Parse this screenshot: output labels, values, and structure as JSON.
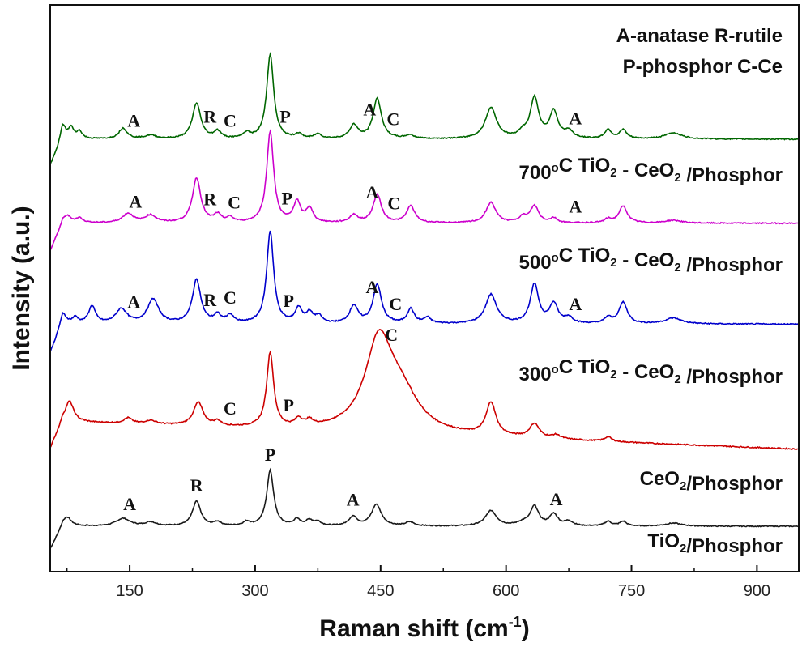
{
  "chart_data": {
    "type": "line",
    "xlabel": "Raman shift (cm",
    "xlabel_sup": "-1",
    "xlabel_tail": ")",
    "ylabel": "Intensity (a.u.)",
    "xlim": [
      55,
      950
    ],
    "xticks": [
      150,
      300,
      450,
      600,
      750,
      900
    ],
    "legend_lines": [
      "A-anatase R-rutile",
      "P-phosphor C-Ce"
    ],
    "series": [
      {
        "label_parts": [
          {
            "t": "TiO"
          },
          {
            "t": "2",
            "sub": true
          },
          {
            "t": "/Phosphor"
          }
        ],
        "color": "#1a1a1a",
        "baseline": 0.02,
        "peaks": [
          [
            75,
            0.12,
            6
          ],
          [
            142,
            0.1,
            10
          ],
          [
            175,
            0.05,
            8
          ],
          [
            230,
            0.32,
            6
          ],
          [
            255,
            0.05,
            5
          ],
          [
            290,
            0.05,
            5
          ],
          [
            318,
            0.72,
            5
          ],
          [
            350,
            0.08,
            5
          ],
          [
            365,
            0.07,
            5
          ],
          [
            375,
            0.05,
            5
          ],
          [
            417,
            0.12,
            6
          ],
          [
            445,
            0.28,
            7
          ],
          [
            485,
            0.05,
            6
          ],
          [
            582,
            0.2,
            8
          ],
          [
            620,
            0.04,
            8
          ],
          [
            634,
            0.25,
            6
          ],
          [
            657,
            0.15,
            6
          ],
          [
            675,
            0.06,
            6
          ],
          [
            722,
            0.06,
            5
          ],
          [
            740,
            0.06,
            5
          ],
          [
            800,
            0.04,
            12
          ]
        ],
        "annotations": [
          {
            "x": 150,
            "text": "A"
          },
          {
            "x": 230,
            "text": "R"
          },
          {
            "x": 318,
            "text": "P"
          },
          {
            "x": 417,
            "text": "A"
          },
          {
            "x": 660,
            "text": "A"
          }
        ]
      },
      {
        "label_parts": [
          {
            "t": "CeO"
          },
          {
            "t": "2",
            "sub": true
          },
          {
            "t": "/Phosphor"
          }
        ],
        "color": "#cc0000",
        "baseline": 0.3,
        "baseline_end": 0.0,
        "peaks": [
          [
            78,
            0.22,
            6
          ],
          [
            148,
            0.06,
            6
          ],
          [
            175,
            0.04,
            8
          ],
          [
            232,
            0.25,
            7
          ],
          [
            255,
            0.05,
            5
          ],
          [
            318,
            0.8,
            5
          ],
          [
            352,
            0.08,
            5
          ],
          [
            365,
            0.06,
            5
          ],
          [
            448,
            0.95,
            20
          ],
          [
            475,
            0.35,
            25
          ],
          [
            582,
            0.35,
            7
          ],
          [
            634,
            0.15,
            7
          ],
          [
            660,
            0.04,
            6
          ],
          [
            722,
            0.05,
            5
          ]
        ],
        "annotations": [
          {
            "x": 270,
            "text": "C"
          },
          {
            "x": 340,
            "text": "P"
          },
          {
            "x": 463,
            "text": "C"
          }
        ]
      },
      {
        "label_parts": [
          {
            "t": "300"
          },
          {
            "t": "o",
            "sup": true
          },
          {
            "t": "C TiO"
          },
          {
            "t": "2",
            "sub": true
          },
          {
            "t": " - CeO"
          },
          {
            "t": "2",
            "sub": true
          },
          {
            "t": " /Phosphor"
          }
        ],
        "color": "#0000cc",
        "baseline": 0.08,
        "peaks": [
          [
            70,
            0.1,
            5
          ],
          [
            85,
            0.06,
            4
          ],
          [
            105,
            0.18,
            5
          ],
          [
            140,
            0.15,
            8
          ],
          [
            178,
            0.25,
            8
          ],
          [
            230,
            0.45,
            6
          ],
          [
            255,
            0.08,
            5
          ],
          [
            270,
            0.08,
            5
          ],
          [
            318,
            0.95,
            5
          ],
          [
            352,
            0.15,
            5
          ],
          [
            365,
            0.1,
            5
          ],
          [
            376,
            0.07,
            5
          ],
          [
            418,
            0.18,
            6
          ],
          [
            446,
            0.4,
            6
          ],
          [
            486,
            0.15,
            5
          ],
          [
            506,
            0.06,
            5
          ],
          [
            582,
            0.3,
            8
          ],
          [
            634,
            0.4,
            6
          ],
          [
            657,
            0.2,
            6
          ],
          [
            675,
            0.06,
            6
          ],
          [
            722,
            0.06,
            5
          ],
          [
            740,
            0.22,
            6
          ],
          [
            800,
            0.06,
            12
          ]
        ],
        "annotations": [
          {
            "x": 155,
            "text": "A"
          },
          {
            "x": 246,
            "text": "R"
          },
          {
            "x": 270,
            "text": "C"
          },
          {
            "x": 340,
            "text": "P"
          },
          {
            "x": 440,
            "text": "A"
          },
          {
            "x": 468,
            "text": "C"
          },
          {
            "x": 683,
            "text": "A"
          }
        ]
      },
      {
        "label_parts": [
          {
            "t": "500"
          },
          {
            "t": "o",
            "sup": true
          },
          {
            "t": "C TiO"
          },
          {
            "t": "2",
            "sub": true
          },
          {
            "t": " - CeO"
          },
          {
            "t": "2",
            "sub": true
          },
          {
            "t": " /Phosphor"
          }
        ],
        "color": "#cc00cc",
        "baseline": 0.08,
        "peaks": [
          [
            75,
            0.08,
            6
          ],
          [
            90,
            0.05,
            5
          ],
          [
            148,
            0.1,
            8
          ],
          [
            175,
            0.08,
            8
          ],
          [
            230,
            0.48,
            6
          ],
          [
            255,
            0.08,
            5
          ],
          [
            270,
            0.05,
            5
          ],
          [
            318,
            0.98,
            5
          ],
          [
            350,
            0.22,
            5
          ],
          [
            365,
            0.15,
            5
          ],
          [
            418,
            0.08,
            6
          ],
          [
            446,
            0.3,
            6
          ],
          [
            486,
            0.18,
            6
          ],
          [
            582,
            0.22,
            7
          ],
          [
            620,
            0.06,
            6
          ],
          [
            634,
            0.18,
            6
          ],
          [
            657,
            0.05,
            5
          ],
          [
            722,
            0.04,
            5
          ],
          [
            740,
            0.18,
            6
          ],
          [
            800,
            0.03,
            12
          ]
        ],
        "annotations": [
          {
            "x": 157,
            "text": "A"
          },
          {
            "x": 246,
            "text": "R"
          },
          {
            "x": 275,
            "text": "C"
          },
          {
            "x": 338,
            "text": "P"
          },
          {
            "x": 440,
            "text": "A"
          },
          {
            "x": 466,
            "text": "C"
          },
          {
            "x": 683,
            "text": "A"
          }
        ]
      },
      {
        "label_parts": [
          {
            "t": "700"
          },
          {
            "t": "o",
            "sup": true
          },
          {
            "t": "C TiO"
          },
          {
            "t": "2",
            "sub": true
          },
          {
            "t": " - CeO"
          },
          {
            "t": "2",
            "sub": true
          },
          {
            "t": " /Phosphor"
          }
        ],
        "color": "#006600",
        "baseline": 0.1,
        "peaks": [
          [
            70,
            0.15,
            4
          ],
          [
            80,
            0.12,
            4
          ],
          [
            90,
            0.08,
            4
          ],
          [
            142,
            0.12,
            6
          ],
          [
            175,
            0.04,
            8
          ],
          [
            230,
            0.4,
            6
          ],
          [
            255,
            0.08,
            5
          ],
          [
            290,
            0.06,
            5
          ],
          [
            318,
            0.95,
            5
          ],
          [
            352,
            0.05,
            5
          ],
          [
            375,
            0.05,
            5
          ],
          [
            418,
            0.15,
            6
          ],
          [
            446,
            0.45,
            6
          ],
          [
            485,
            0.04,
            6
          ],
          [
            582,
            0.35,
            8
          ],
          [
            620,
            0.06,
            6
          ],
          [
            634,
            0.45,
            6
          ],
          [
            657,
            0.3,
            6
          ],
          [
            675,
            0.08,
            6
          ],
          [
            722,
            0.1,
            5
          ],
          [
            740,
            0.1,
            5
          ],
          [
            800,
            0.07,
            12
          ]
        ],
        "annotations": [
          {
            "x": 155,
            "text": "A"
          },
          {
            "x": 246,
            "text": "R"
          },
          {
            "x": 270,
            "text": "C"
          },
          {
            "x": 336,
            "text": "P"
          },
          {
            "x": 437,
            "text": "A"
          },
          {
            "x": 465,
            "text": "C"
          },
          {
            "x": 683,
            "text": "A"
          }
        ]
      }
    ]
  }
}
